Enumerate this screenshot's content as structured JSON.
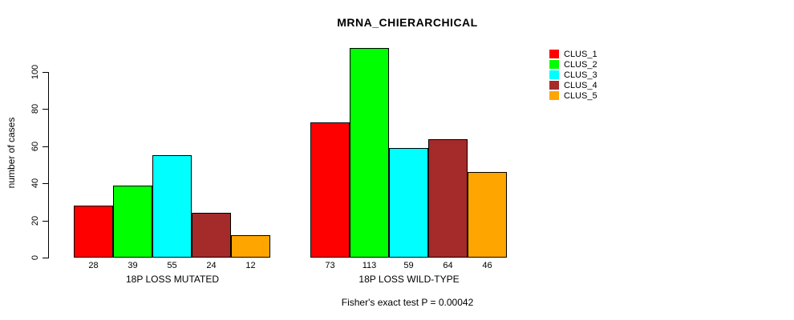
{
  "chart_data": {
    "type": "bar",
    "title": "MRNA_CHIERARCHICAL",
    "ylabel": "number of cases",
    "ylim": [
      0,
      113
    ],
    "yticks": [
      0,
      20,
      40,
      60,
      80,
      100
    ],
    "grid": false,
    "categories": [
      "18P LOSS MUTATED",
      "18P LOSS WILD-TYPE"
    ],
    "series": [
      {
        "name": "CLUS_1",
        "color": "#FF0000",
        "values": [
          28,
          73
        ]
      },
      {
        "name": "CLUS_2",
        "color": "#00FF00",
        "values": [
          39,
          113
        ]
      },
      {
        "name": "CLUS_3",
        "color": "#00FFFF",
        "values": [
          55,
          59
        ]
      },
      {
        "name": "CLUS_4",
        "color": "#A52A2A",
        "values": [
          24,
          64
        ]
      },
      {
        "name": "CLUS_5",
        "color": "#FFA500",
        "values": [
          12,
          46
        ]
      }
    ],
    "bar_value_labels": true,
    "legend_position": "right",
    "annotation": "Fisher's exact test P = 0.00042"
  }
}
